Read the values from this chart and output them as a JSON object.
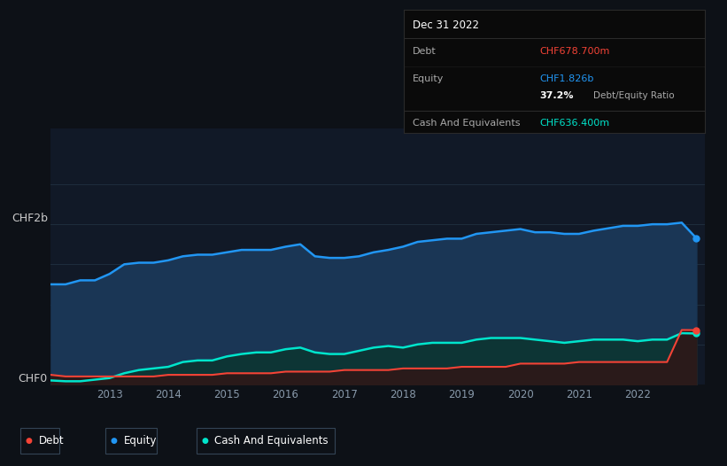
{
  "bg_color": "#0d1117",
  "plot_bg_color": "#111927",
  "grid_color": "#1e2d3d",
  "x_ticks": [
    2013,
    2014,
    2015,
    2016,
    2017,
    2018,
    2019,
    2020,
    2021,
    2022
  ],
  "equity_color": "#2196f3",
  "debt_color": "#f44336",
  "cash_color": "#00e5cc",
  "equity_fill": "#1a3655",
  "cash_fill": "#0d3535",
  "debt_fill": "#2a1a1a",
  "ylim_max": 3.2,
  "years": [
    2012.0,
    2012.25,
    2012.5,
    2012.75,
    2013.0,
    2013.25,
    2013.5,
    2013.75,
    2014.0,
    2014.25,
    2014.5,
    2014.75,
    2015.0,
    2015.25,
    2015.5,
    2015.75,
    2016.0,
    2016.25,
    2016.5,
    2016.75,
    2017.0,
    2017.25,
    2017.5,
    2017.75,
    2018.0,
    2018.25,
    2018.5,
    2018.75,
    2019.0,
    2019.25,
    2019.5,
    2019.75,
    2020.0,
    2020.25,
    2020.5,
    2020.75,
    2021.0,
    2021.25,
    2021.5,
    2021.75,
    2022.0,
    2022.25,
    2022.5,
    2022.75,
    2023.0
  ],
  "equity": [
    1.25,
    1.25,
    1.3,
    1.3,
    1.38,
    1.5,
    1.52,
    1.52,
    1.55,
    1.6,
    1.62,
    1.62,
    1.65,
    1.68,
    1.68,
    1.68,
    1.72,
    1.75,
    1.6,
    1.58,
    1.58,
    1.6,
    1.65,
    1.68,
    1.72,
    1.78,
    1.8,
    1.82,
    1.82,
    1.88,
    1.9,
    1.92,
    1.94,
    1.9,
    1.9,
    1.88,
    1.88,
    1.92,
    1.95,
    1.98,
    1.98,
    2.0,
    2.0,
    2.02,
    1.826
  ],
  "cash": [
    0.05,
    0.04,
    0.04,
    0.06,
    0.08,
    0.14,
    0.18,
    0.2,
    0.22,
    0.28,
    0.3,
    0.3,
    0.35,
    0.38,
    0.4,
    0.4,
    0.44,
    0.46,
    0.4,
    0.38,
    0.38,
    0.42,
    0.46,
    0.48,
    0.46,
    0.5,
    0.52,
    0.52,
    0.52,
    0.56,
    0.58,
    0.58,
    0.58,
    0.56,
    0.54,
    0.52,
    0.54,
    0.56,
    0.56,
    0.56,
    0.54,
    0.56,
    0.56,
    0.64,
    0.6364
  ],
  "debt": [
    0.12,
    0.1,
    0.1,
    0.1,
    0.1,
    0.1,
    0.1,
    0.1,
    0.12,
    0.12,
    0.12,
    0.12,
    0.14,
    0.14,
    0.14,
    0.14,
    0.16,
    0.16,
    0.16,
    0.16,
    0.18,
    0.18,
    0.18,
    0.18,
    0.2,
    0.2,
    0.2,
    0.2,
    0.22,
    0.22,
    0.22,
    0.22,
    0.26,
    0.26,
    0.26,
    0.26,
    0.28,
    0.28,
    0.28,
    0.28,
    0.28,
    0.28,
    0.28,
    0.68,
    0.6787
  ],
  "tooltip": {
    "date": "Dec 31 2022",
    "debt_label": "Debt",
    "debt_value": "CHF678.700m",
    "equity_label": "Equity",
    "equity_value": "CHF1.826b",
    "ratio_value": "37.2%",
    "ratio_label": "Debt/Equity Ratio",
    "cash_label": "Cash And Equivalents",
    "cash_value": "CHF636.400m"
  },
  "legend": [
    {
      "label": "Debt",
      "color": "#f44336"
    },
    {
      "label": "Equity",
      "color": "#2196f3"
    },
    {
      "label": "Cash And Equivalents",
      "color": "#00e5cc"
    }
  ]
}
